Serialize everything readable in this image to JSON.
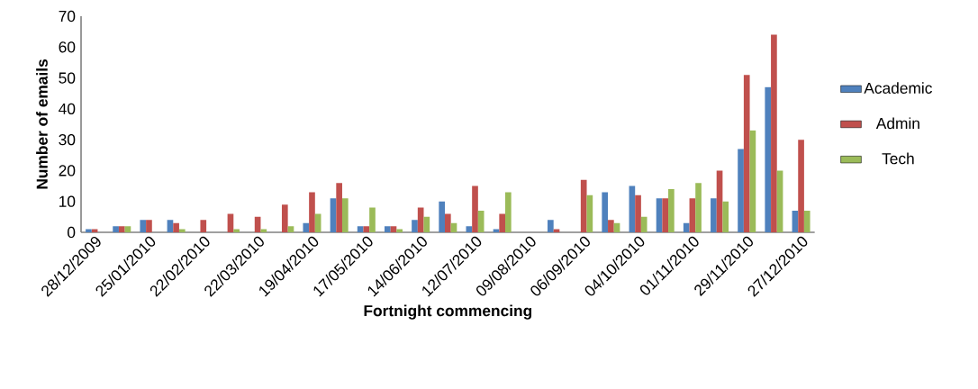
{
  "chart_data": {
    "type": "bar",
    "xlabel": "Fortnight commencing",
    "ylabel": "Number of emails",
    "categories": [
      "28/12/2009",
      null,
      "25/01/2010",
      null,
      "22/02/2010",
      null,
      "22/03/2010",
      null,
      "19/04/2010",
      null,
      "17/05/2010",
      null,
      "14/06/2010",
      null,
      "12/07/2010",
      null,
      "09/08/2010",
      null,
      "06/09/2010",
      null,
      "04/10/2010",
      null,
      "01/11/2010",
      null,
      "29/11/2010",
      null,
      "27/12/2010"
    ],
    "series": [
      {
        "name": "Academic",
        "color": "#4f81bd",
        "values": [
          1,
          2,
          4,
          4,
          0,
          0,
          0,
          0,
          3,
          11,
          2,
          2,
          4,
          10,
          2,
          1,
          0,
          4,
          0,
          13,
          15,
          11,
          3,
          11,
          27,
          47,
          7
        ]
      },
      {
        "name": "Admin",
        "color": "#c0504d",
        "values": [
          1,
          2,
          4,
          3,
          4,
          6,
          5,
          9,
          13,
          16,
          2,
          2,
          8,
          6,
          15,
          6,
          0,
          1,
          17,
          4,
          12,
          11,
          11,
          20,
          51,
          64,
          30
        ]
      },
      {
        "name": "Tech",
        "color": "#9bbb59",
        "values": [
          0,
          2,
          0,
          1,
          0,
          1,
          1,
          2,
          6,
          11,
          8,
          1,
          5,
          3,
          7,
          13,
          0,
          0,
          12,
          3,
          5,
          14,
          16,
          10,
          33,
          20,
          7
        ]
      }
    ],
    "ylim": [
      0,
      70
    ],
    "yticks": [
      0,
      10,
      20,
      30,
      40,
      50,
      60,
      70
    ],
    "grid": false,
    "legend": "right"
  }
}
